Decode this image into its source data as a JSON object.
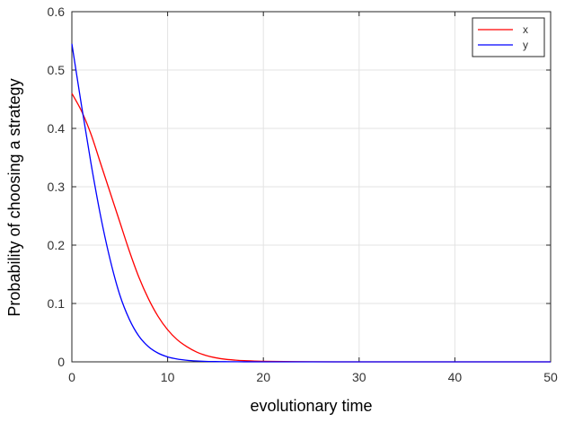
{
  "chart_data": {
    "type": "line",
    "title": "",
    "xlabel": "evolutionary time",
    "ylabel": "Probability of choosing a strategy",
    "xlim": [
      0,
      50
    ],
    "ylim": [
      0,
      0.6
    ],
    "x_ticks": [
      "0",
      "10",
      "20",
      "30",
      "40",
      "50"
    ],
    "y_ticks": [
      "0",
      "0.1",
      "0.2",
      "0.3",
      "0.4",
      "0.5",
      "0.6"
    ],
    "grid": true,
    "legend_position": "top-right",
    "series": [
      {
        "name": "x",
        "color": "#ff0000",
        "x": [
          0,
          1,
          2,
          3,
          4,
          5,
          6,
          7,
          8,
          9,
          10,
          11,
          12,
          13,
          14,
          15,
          16,
          17,
          18,
          20,
          25,
          30,
          35,
          40,
          45,
          50
        ],
        "values": [
          0.46,
          0.43,
          0.39,
          0.34,
          0.29,
          0.24,
          0.19,
          0.145,
          0.108,
          0.078,
          0.055,
          0.038,
          0.026,
          0.017,
          0.011,
          0.007,
          0.0045,
          0.003,
          0.002,
          0.001,
          0.0002,
          0.0,
          0.0,
          0.0,
          0.0,
          0.0
        ]
      },
      {
        "name": "y",
        "color": "#0000ff",
        "x": [
          0,
          1,
          2,
          3,
          4,
          5,
          6,
          7,
          8,
          9,
          10,
          11,
          12,
          13,
          14,
          15,
          16,
          17,
          18,
          20,
          25,
          30,
          35,
          40,
          45,
          50
        ],
        "values": [
          0.545,
          0.44,
          0.34,
          0.25,
          0.175,
          0.115,
          0.073,
          0.044,
          0.026,
          0.015,
          0.0085,
          0.0048,
          0.0027,
          0.0015,
          0.0008,
          0.0005,
          0.0003,
          0.0002,
          0.0001,
          0.0,
          0.0,
          0.0,
          0.0,
          0.0,
          0.0,
          0.0
        ]
      }
    ]
  }
}
